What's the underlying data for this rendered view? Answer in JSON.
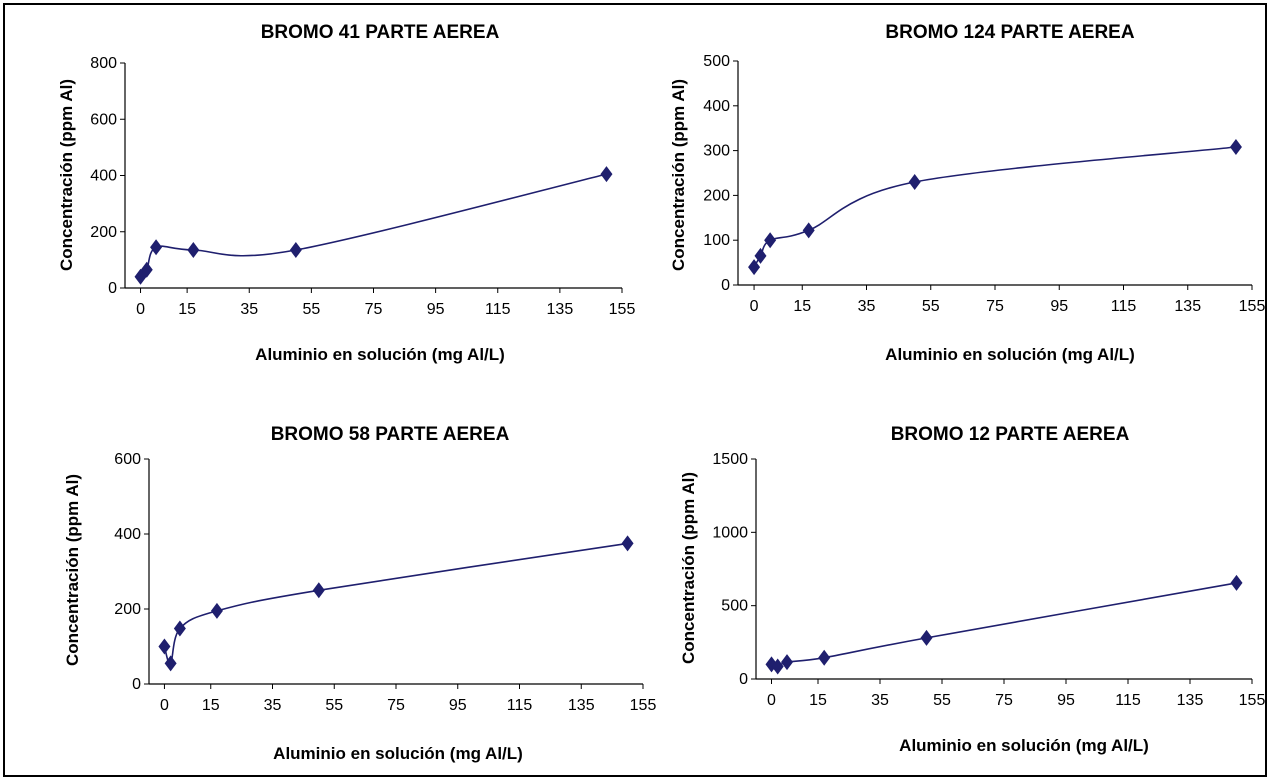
{
  "colors": {
    "series": "#1f1f6e",
    "axis": "#000000",
    "background": "#ffffff"
  },
  "chart_data": [
    {
      "type": "line",
      "title": "BROMO 41 PARTE AEREA",
      "xlabel": "Aluminio en solución (mg Al/L)",
      "ylabel": "Concentración   (ppm Al)",
      "xlim": [
        -5,
        155
      ],
      "ylim": [
        0,
        800
      ],
      "xticks": [
        0,
        15,
        35,
        55,
        75,
        95,
        115,
        135,
        155
      ],
      "yticks": [
        0,
        200,
        400,
        600,
        800
      ],
      "grid": false,
      "series": [
        {
          "x": [
            0,
            2,
            5,
            17,
            50,
            150
          ],
          "y": [
            40,
            65,
            145,
            135,
            135,
            405
          ]
        }
      ]
    },
    {
      "type": "line",
      "title": "BROMO 124 PARTE AEREA",
      "xlabel": "Aluminio en solución (mg Al/L)",
      "ylabel": "Concentración   (ppm Al)",
      "xlim": [
        -5,
        155
      ],
      "ylim": [
        0,
        500
      ],
      "xticks": [
        0,
        15,
        35,
        55,
        75,
        95,
        115,
        135,
        155
      ],
      "yticks": [
        0,
        100,
        200,
        300,
        400,
        500
      ],
      "grid": false,
      "series": [
        {
          "x": [
            0,
            2,
            5,
            17,
            50,
            150
          ],
          "y": [
            40,
            65,
            100,
            122,
            230,
            308
          ]
        }
      ]
    },
    {
      "type": "line",
      "title": "BROMO 58 PARTE AEREA",
      "xlabel": "Aluminio en solución (mg Al/L)",
      "ylabel": "Concentración   (ppm Al)",
      "xlim": [
        -5,
        155
      ],
      "ylim": [
        0,
        600
      ],
      "xticks": [
        0,
        15,
        35,
        55,
        75,
        95,
        115,
        135,
        155
      ],
      "yticks": [
        0,
        200,
        400,
        600
      ],
      "grid": false,
      "series": [
        {
          "x": [
            0,
            2,
            5,
            17,
            50,
            150
          ],
          "y": [
            100,
            55,
            148,
            195,
            250,
            375
          ]
        }
      ]
    },
    {
      "type": "line",
      "title": "BROMO 12 PARTE AEREA",
      "xlabel": "Aluminio en solución (mg Al/L)",
      "ylabel": "Concentración   (ppm Al)",
      "xlim": [
        -5,
        155
      ],
      "ylim": [
        0,
        1500
      ],
      "xticks": [
        0,
        15,
        35,
        55,
        75,
        95,
        115,
        135,
        155
      ],
      "yticks": [
        0,
        500,
        1000,
        1500
      ],
      "grid": false,
      "series": [
        {
          "x": [
            0,
            2,
            5,
            17,
            50,
            150
          ],
          "y": [
            100,
            85,
            115,
            145,
            280,
            655
          ]
        }
      ]
    }
  ]
}
